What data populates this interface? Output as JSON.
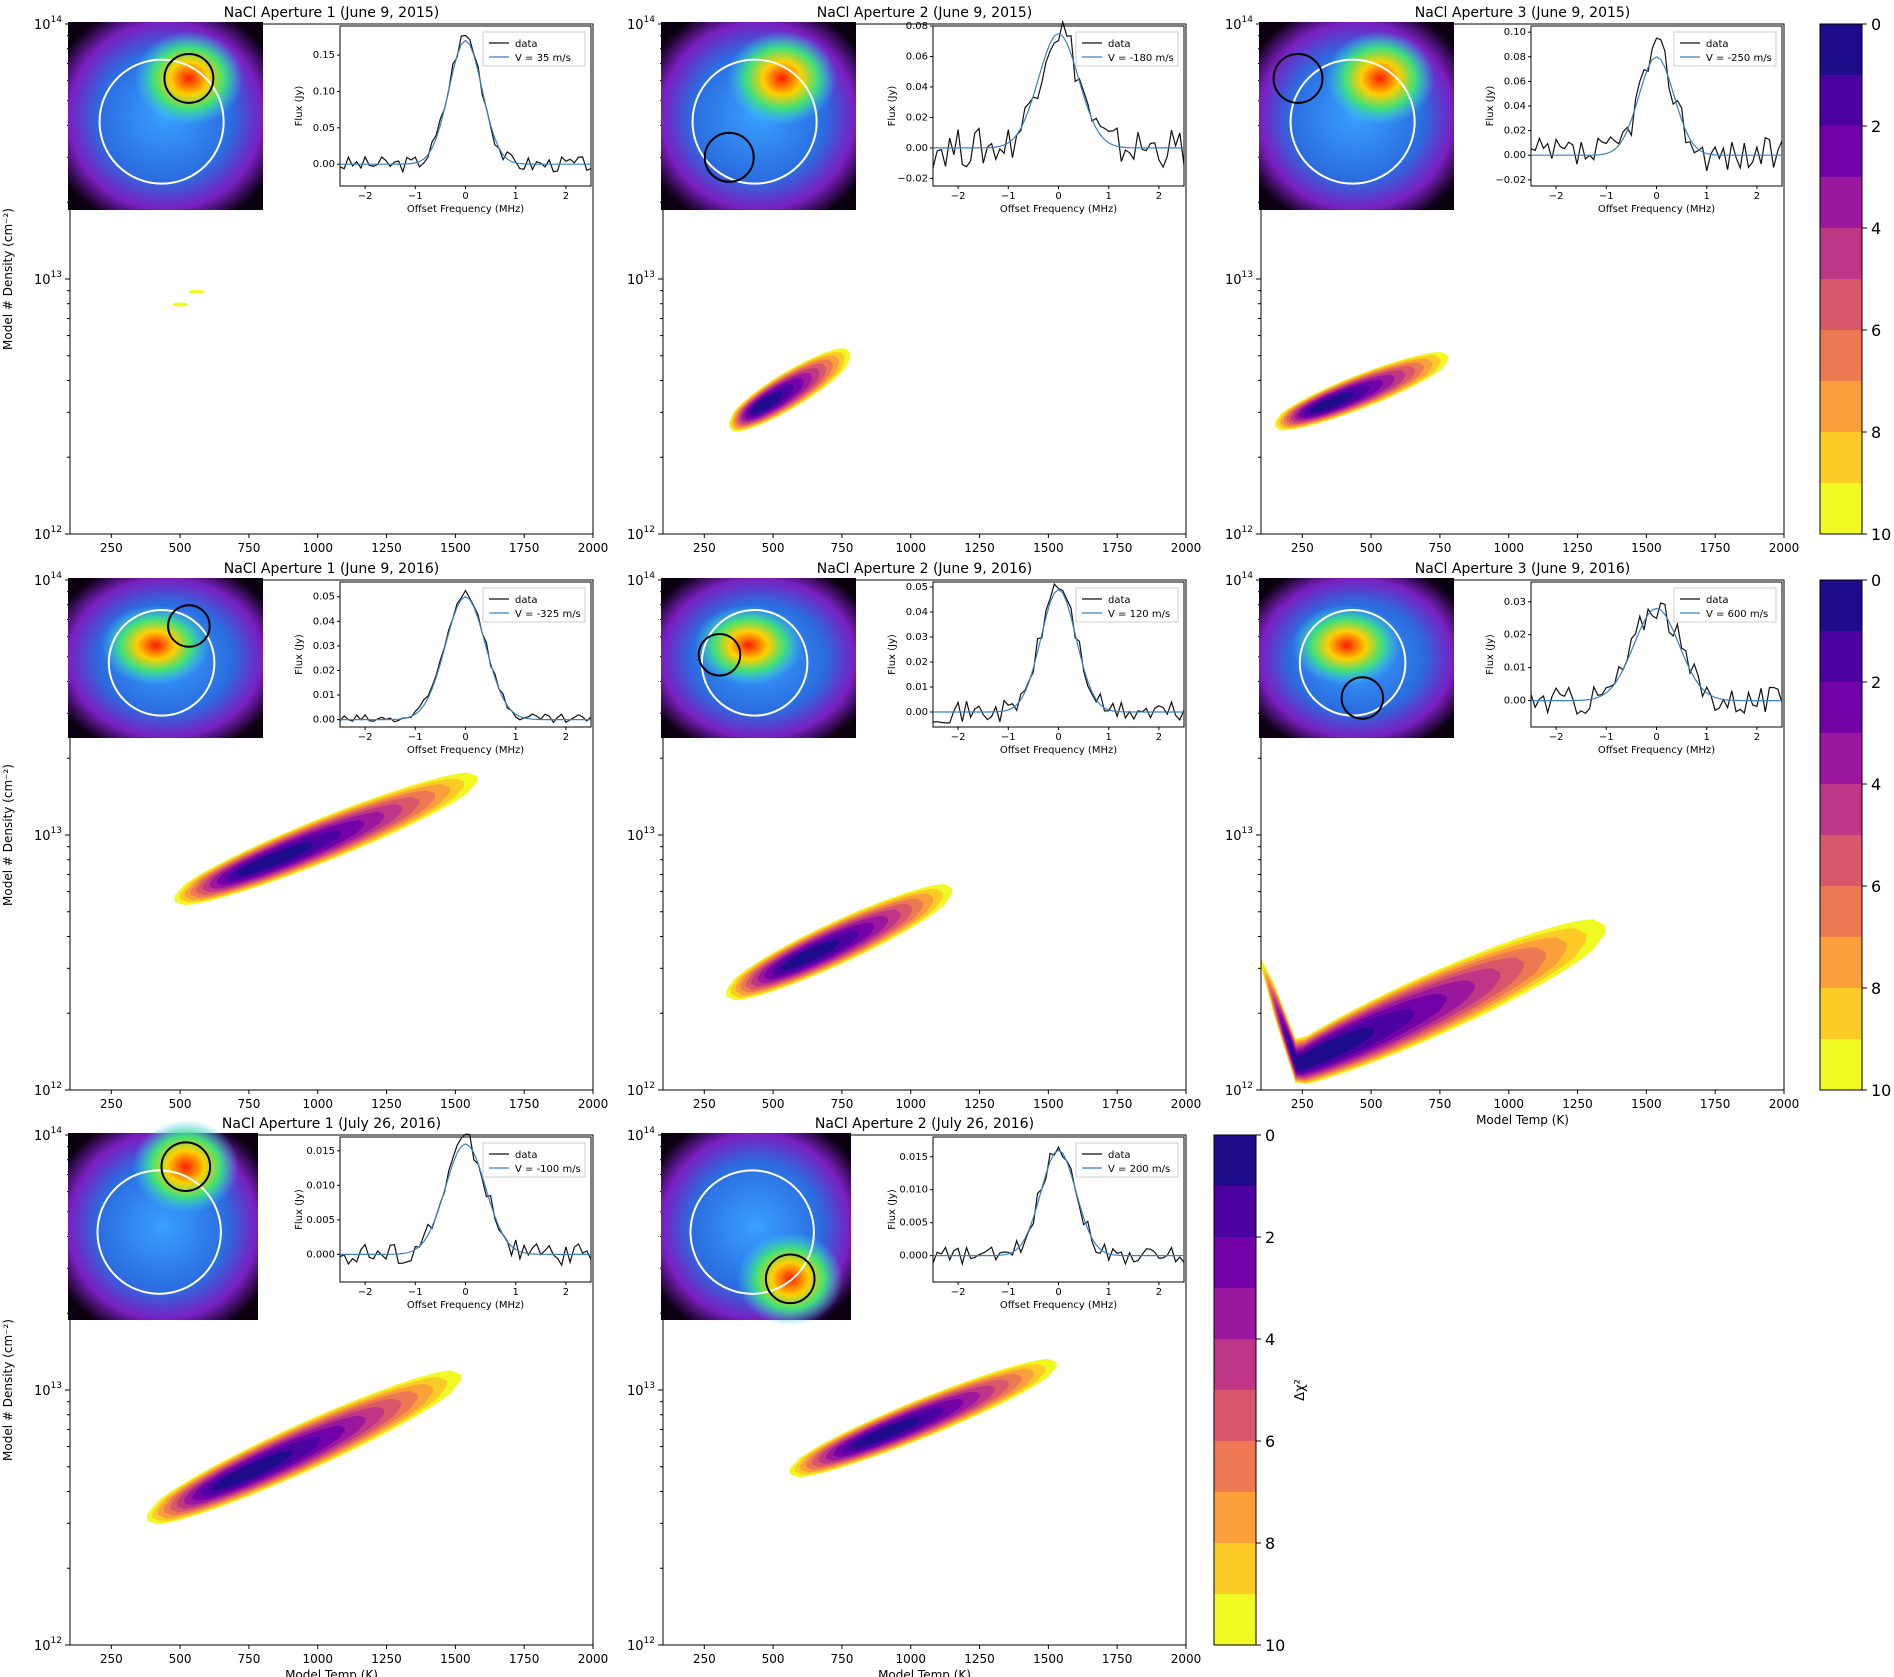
{
  "figure": {
    "colorbar": {
      "label": "Δχ²",
      "ticks": [
        "0",
        "2",
        "4",
        "6",
        "8",
        "10"
      ],
      "levels": [
        "#1f0c8a",
        "#4c02a1",
        "#7301a8",
        "#9b179e",
        "#bd3786",
        "#d8576b",
        "#ed7953",
        "#fb9f3a",
        "#fdca26",
        "#f0f921"
      ]
    },
    "axes_common": {
      "xticks": [
        "250",
        "500",
        "750",
        "1000",
        "1250",
        "1500",
        "1750",
        "2000"
      ],
      "ylabel": "Model # Density (cm⁻²)",
      "xlabel": "Model Temp (K)",
      "ytick_base": "10",
      "ytick_exponents": [
        "12",
        "13",
        "14"
      ],
      "inset_xticks": [
        "−2",
        "−1",
        "0",
        "1",
        "2"
      ],
      "inset_xlabel": "Offset Frequency (MHz)",
      "inset_ylabel": "Flux (Jy)",
      "legend_data": "data"
    }
  },
  "chart_data": [
    {
      "type": "heatmap",
      "title": "NaCl Aperture 1 (June 9, 2015)",
      "xlabel": "",
      "ylabel": "Model # Density (cm⁻²)",
      "xlim": [
        100,
        2000
      ],
      "ylim_log10": [
        12,
        14
      ],
      "z_label": "Δχ²",
      "z_range": [
        0,
        10
      ],
      "min_region": {
        "type": "spots",
        "points": [
          {
            "t": 500,
            "log_n": 12.9,
            "dchi2": 9
          },
          {
            "t": 560,
            "log_n": 12.95,
            "dchi2": 9
          }
        ]
      },
      "inset": {
        "legend_model": "V = 35 m/s",
        "yticks": [
          "0.00",
          "0.05",
          "0.10",
          "0.15"
        ],
        "ylim": [
          -0.03,
          0.19
        ],
        "peak_jy": 0.17,
        "line_width_mhz": 0.33,
        "noise_jy": 0.01
      },
      "image_inset": {
        "hotspot": "upper-right",
        "aperture": "upper-right"
      }
    },
    {
      "type": "heatmap",
      "title": "NaCl Aperture 2 (June 9, 2015)",
      "xlabel": "",
      "ylabel": "",
      "xlim": [
        100,
        2000
      ],
      "ylim_log10": [
        12,
        14
      ],
      "z_label": "Δχ²",
      "z_range": [
        0,
        10
      ],
      "min_region": {
        "type": "band",
        "t_start": 340,
        "t_end": 780,
        "log_n_start": 12.43,
        "log_n_end": 12.7,
        "t_min": 450,
        "width": 0.08
      },
      "inset": {
        "legend_model": "V = -180 m/s",
        "yticks": [
          "−0.02",
          "0.00",
          "0.02",
          "0.04",
          "0.06",
          "0.08"
        ],
        "ylim": [
          -0.025,
          0.08
        ],
        "peak_jy": 0.075,
        "line_width_mhz": 0.4,
        "noise_jy": 0.012
      },
      "image_inset": {
        "hotspot": "upper-right",
        "aperture": "lower-left"
      }
    },
    {
      "type": "heatmap",
      "title": "NaCl Aperture 3 (June 9, 2015)",
      "xlabel": "",
      "ylabel": "",
      "xlim": [
        100,
        2000
      ],
      "ylim_log10": [
        12,
        14
      ],
      "z_label": "Δχ²",
      "z_range": [
        0,
        10
      ],
      "min_region": {
        "type": "band",
        "t_start": 150,
        "t_end": 780,
        "log_n_start": 12.43,
        "log_n_end": 12.69,
        "t_min": 320,
        "width": 0.07
      },
      "inset": {
        "legend_model": "V = -250 m/s",
        "yticks": [
          "−0.02",
          "0.00",
          "0.02",
          "0.04",
          "0.06",
          "0.08",
          "0.10"
        ],
        "ylim": [
          -0.025,
          0.105
        ],
        "peak_jy": 0.08,
        "line_width_mhz": 0.35,
        "noise_jy": 0.013
      },
      "image_inset": {
        "hotspot": "upper-right",
        "aperture": "upper-left"
      }
    },
    {
      "type": "heatmap",
      "title": "NaCl Aperture 1 (June 9, 2016)",
      "xlabel": "",
      "ylabel": "Model # Density (cm⁻²)",
      "xlim": [
        100,
        2000
      ],
      "ylim_log10": [
        12,
        14
      ],
      "z_label": "Δχ²",
      "z_range": [
        0,
        10
      ],
      "min_region": {
        "type": "band",
        "t_start": 480,
        "t_end": 1580,
        "log_n_start": 12.75,
        "log_n_end": 13.22,
        "t_min": 780,
        "width": 0.09
      },
      "inset": {
        "legend_model": "V = -325 m/s",
        "yticks": [
          "0.00",
          "0.01",
          "0.02",
          "0.03",
          "0.04",
          "0.05"
        ],
        "ylim": [
          -0.003,
          0.056
        ],
        "peak_jy": 0.05,
        "line_width_mhz": 0.4,
        "noise_jy": 0.002
      },
      "image_inset": {
        "hotspot": "center-left",
        "aperture": "upper-right"
      }
    },
    {
      "type": "heatmap",
      "title": "NaCl Aperture 2 (June 9, 2016)",
      "xlabel": "",
      "ylabel": "",
      "xlim": [
        100,
        2000
      ],
      "ylim_log10": [
        12,
        14
      ],
      "z_label": "Δχ²",
      "z_range": [
        0,
        10
      ],
      "min_region": {
        "type": "band",
        "t_start": 330,
        "t_end": 1150,
        "log_n_start": 12.38,
        "log_n_end": 12.78,
        "t_min": 600,
        "width": 0.09
      },
      "inset": {
        "legend_model": "V = 120 m/s",
        "yticks": [
          "0.00",
          "0.01",
          "0.02",
          "0.03",
          "0.04",
          "0.05"
        ],
        "ylim": [
          -0.006,
          0.052
        ],
        "peak_jy": 0.049,
        "line_width_mhz": 0.35,
        "noise_jy": 0.004
      },
      "image_inset": {
        "hotspot": "center-left",
        "aperture": "left"
      }
    },
    {
      "type": "heatmap",
      "title": "NaCl Aperture 3 (June 9, 2016)",
      "xlabel": "Model Temp (K)",
      "ylabel": "",
      "xlim": [
        100,
        2000
      ],
      "ylim_log10": [
        12,
        14
      ],
      "z_label": "Δχ²",
      "z_range": [
        0,
        10
      ],
      "min_region": {
        "type": "vshape",
        "t_start": 100,
        "t_vertex": 230,
        "t_end": 1350,
        "log_n_start": 12.5,
        "log_n_vertex": 12.1,
        "log_n_end": 12.63,
        "width": 0.13
      },
      "inset": {
        "legend_model": "V = 600 m/s",
        "yticks": [
          "0.00",
          "0.01",
          "0.02",
          "0.03"
        ],
        "ylim": [
          -0.008,
          0.036
        ],
        "peak_jy": 0.028,
        "line_width_mhz": 0.45,
        "noise_jy": 0.004
      },
      "image_inset": {
        "hotspot": "center-left",
        "aperture": "lower-center"
      }
    },
    {
      "type": "heatmap",
      "title": "NaCl Aperture 1 (July 26, 2016)",
      "xlabel": "Model Temp (K)",
      "ylabel": "Model # Density (cm⁻²)",
      "xlim": [
        100,
        2000
      ],
      "ylim_log10": [
        12,
        14
      ],
      "z_label": "Δχ²",
      "z_range": [
        0,
        10
      ],
      "min_region": {
        "type": "band",
        "t_start": 380,
        "t_end": 1520,
        "log_n_start": 12.5,
        "log_n_end": 13.05,
        "t_min": 700,
        "width": 0.1
      },
      "inset": {
        "legend_model": "V = -100 m/s",
        "yticks": [
          "0.000",
          "0.005",
          "0.010",
          "0.015"
        ],
        "ylim": [
          -0.004,
          0.017
        ],
        "peak_jy": 0.016,
        "line_width_mhz": 0.4,
        "noise_jy": 0.0015
      },
      "image_inset": {
        "hotspot": "top",
        "aperture": "top"
      }
    },
    {
      "type": "heatmap",
      "title": "NaCl Aperture 2 (July 26, 2016)",
      "xlabel": "Model Temp (K)",
      "ylabel": "",
      "xlim": [
        100,
        2000
      ],
      "ylim_log10": [
        12,
        14
      ],
      "z_label": "Δχ²",
      "z_range": [
        0,
        10
      ],
      "min_region": {
        "type": "band",
        "t_start": 560,
        "t_end": 1530,
        "log_n_start": 12.68,
        "log_n_end": 13.1,
        "t_min": 870,
        "width": 0.08
      },
      "inset": {
        "legend_model": "V = 200 m/s",
        "yticks": [
          "0.000",
          "0.005",
          "0.010",
          "0.015"
        ],
        "ylim": [
          -0.004,
          0.018
        ],
        "peak_jy": 0.016,
        "line_width_mhz": 0.35,
        "noise_jy": 0.0012
      },
      "image_inset": {
        "hotspot": "lower-right",
        "aperture": "lower-right"
      }
    }
  ]
}
